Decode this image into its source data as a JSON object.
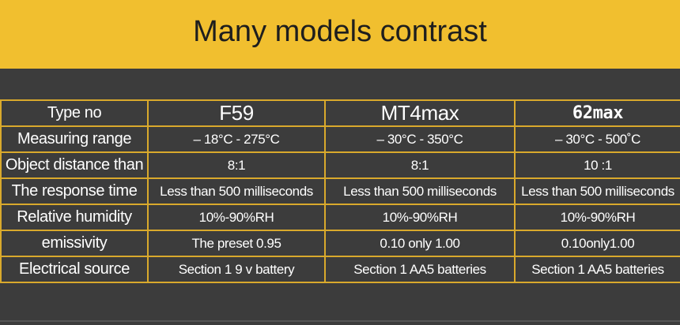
{
  "header": {
    "title": "Many models contrast"
  },
  "table": {
    "columns": [
      "Type no",
      "F59",
      "MT4max",
      "62max"
    ],
    "rows": [
      [
        "Measuring range",
        "– 18°C - 275°C",
        "– 30°C - 350°C",
        "– 30°C - 500˚C"
      ],
      [
        "Object distance than",
        "8:1",
        "8:1",
        "10 :1"
      ],
      [
        "The response time",
        "Less than 500 milliseconds",
        "Less than 500 milliseconds",
        "Less than 500 milliseconds"
      ],
      [
        "Relative humidity",
        "10%-90%RH",
        "10%-90%RH",
        "10%-90%RH"
      ],
      [
        "emissivity",
        "The preset 0.95",
        "0.10 only 1.00",
        "0.10only1.00"
      ],
      [
        "Electrical source",
        "Section 1 9 v battery",
        "Section 1 AA5 batteries",
        "Section 1 AA5 batteries"
      ]
    ]
  }
}
